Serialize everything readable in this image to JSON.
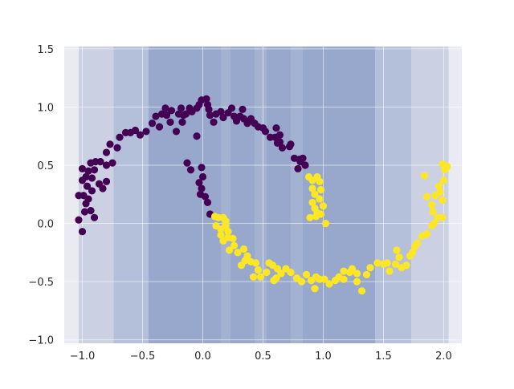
{
  "chart_data": {
    "type": "scatter",
    "title": "",
    "xlabel": "",
    "ylabel": "",
    "xlim": [
      -1.15,
      2.15
    ],
    "ylim": [
      -1.03,
      1.52
    ],
    "xticks": [
      -1.0,
      -0.5,
      0.0,
      0.5,
      1.0,
      1.5,
      2.0
    ],
    "xtick_labels": [
      "−1.0",
      "−0.5",
      "0.0",
      "0.5",
      "1.0",
      "1.5",
      "2.0"
    ],
    "yticks": [
      -1.0,
      -0.5,
      0.0,
      0.5,
      1.0,
      1.5
    ],
    "ytick_labels": [
      "−1.0",
      "−0.5",
      "0.0",
      "0.5",
      "1.0",
      "1.5"
    ],
    "grid": true,
    "legend": "none",
    "background_color": "#eaeaf2",
    "overlay_color": "#7b90bf",
    "overlay_opacity": 0.28,
    "shaded_intervals": [
      [
        -1.03,
        2.04
      ],
      [
        -0.74,
        1.73
      ],
      [
        -0.45,
        1.43
      ],
      [
        -0.45,
        0.15
      ],
      [
        0.23,
        0.43
      ],
      [
        0.53,
        0.73
      ],
      [
        0.83,
        1.43
      ]
    ],
    "series": [
      {
        "color": "#440154",
        "points": [
          [
            -1.03,
            0.03
          ],
          [
            -1.0,
            -0.07
          ],
          [
            -1.03,
            0.24
          ],
          [
            -0.99,
            0.24
          ],
          [
            -0.95,
            0.21
          ],
          [
            -0.97,
            0.17
          ],
          [
            -0.93,
            0.11
          ],
          [
            -0.98,
            0.1
          ],
          [
            -0.9,
            0.05
          ],
          [
            -0.96,
            0.32
          ],
          [
            -0.92,
            0.28
          ],
          [
            -1.0,
            0.37
          ],
          [
            -0.97,
            0.4
          ],
          [
            -0.92,
            0.39
          ],
          [
            -0.86,
            0.34
          ],
          [
            -0.83,
            0.3
          ],
          [
            -0.8,
            0.36
          ],
          [
            -1.0,
            0.47
          ],
          [
            -0.95,
            0.45
          ],
          [
            -0.9,
            0.46
          ],
          [
            -0.93,
            0.52
          ],
          [
            -0.89,
            0.53
          ],
          [
            -0.85,
            0.53
          ],
          [
            -0.8,
            0.5
          ],
          [
            -0.75,
            0.52
          ],
          [
            -0.8,
            0.61
          ],
          [
            -0.77,
            0.68
          ],
          [
            -0.71,
            0.65
          ],
          [
            -0.69,
            0.74
          ],
          [
            -0.64,
            0.78
          ],
          [
            -0.6,
            0.78
          ],
          [
            -0.56,
            0.8
          ],
          [
            -0.52,
            0.76
          ],
          [
            -0.47,
            0.79
          ],
          [
            -0.42,
            0.86
          ],
          [
            -0.36,
            0.83
          ],
          [
            -0.39,
            0.92
          ],
          [
            -0.34,
            0.94
          ],
          [
            -0.31,
            0.99
          ],
          [
            -0.26,
            0.97
          ],
          [
            -0.2,
            0.94
          ],
          [
            -0.18,
            0.99
          ],
          [
            -0.16,
            0.93
          ],
          [
            -0.17,
            0.87
          ],
          [
            -0.22,
            0.79
          ],
          [
            -0.27,
            0.87
          ],
          [
            -0.3,
            0.93
          ],
          [
            -0.14,
            0.94
          ],
          [
            -0.11,
            0.99
          ],
          [
            -0.09,
            0.96
          ],
          [
            -0.05,
            0.99
          ],
          [
            -0.03,
            1.02
          ],
          [
            -0.01,
            1.06
          ],
          [
            0.03,
            1.07
          ],
          [
            0.04,
            1.02
          ],
          [
            0.05,
            0.98
          ],
          [
            0.06,
            0.93
          ],
          [
            0.09,
            0.87
          ],
          [
            0.11,
            0.94
          ],
          [
            0.15,
            0.96
          ],
          [
            0.17,
            0.91
          ],
          [
            0.21,
            0.95
          ],
          [
            0.24,
            0.99
          ],
          [
            0.26,
            0.92
          ],
          [
            0.28,
            0.88
          ],
          [
            0.31,
            0.92
          ],
          [
            0.33,
            0.98
          ],
          [
            0.34,
            0.9
          ],
          [
            0.37,
            0.86
          ],
          [
            0.4,
            0.9
          ],
          [
            0.43,
            0.86
          ],
          [
            0.46,
            0.83
          ],
          [
            0.5,
            0.82
          ],
          [
            0.52,
            0.79
          ],
          [
            0.56,
            0.74
          ],
          [
            0.6,
            0.74
          ],
          [
            0.61,
            0.82
          ],
          [
            0.64,
            0.76
          ],
          [
            0.64,
            0.7
          ],
          [
            0.66,
            0.65
          ],
          [
            0.62,
            0.69
          ],
          [
            0.72,
            0.66
          ],
          [
            0.73,
            0.68
          ],
          [
            0.76,
            0.56
          ],
          [
            0.8,
            0.55
          ],
          [
            0.83,
            0.56
          ],
          [
            0.85,
            0.5
          ],
          [
            0.79,
            0.47
          ],
          [
            0.81,
            0.53
          ],
          [
            -0.05,
            0.75
          ],
          [
            -0.13,
            0.52
          ],
          [
            -0.1,
            0.46
          ],
          [
            -0.01,
            0.48
          ],
          [
            0.0,
            0.4
          ],
          [
            -0.03,
            0.35
          ],
          [
            -0.01,
            0.3
          ],
          [
            -0.02,
            0.25
          ],
          [
            0.02,
            0.23
          ],
          [
            0.04,
            0.18
          ],
          [
            0.06,
            0.08
          ]
        ]
      },
      {
        "color": "#fde725",
        "points": [
          [
            0.1,
            0.06
          ],
          [
            0.13,
            0.05
          ],
          [
            0.17,
            0.05
          ],
          [
            0.19,
            0.02
          ],
          [
            0.11,
            -0.02
          ],
          [
            0.15,
            -0.05
          ],
          [
            0.19,
            -0.02
          ],
          [
            0.21,
            -0.07
          ],
          [
            0.15,
            -0.1
          ],
          [
            0.21,
            -0.12
          ],
          [
            0.25,
            -0.13
          ],
          [
            0.26,
            -0.19
          ],
          [
            0.17,
            -0.15
          ],
          [
            0.22,
            -0.23
          ],
          [
            0.29,
            -0.25
          ],
          [
            0.34,
            -0.22
          ],
          [
            0.37,
            -0.28
          ],
          [
            0.35,
            -0.32
          ],
          [
            0.32,
            -0.36
          ],
          [
            0.4,
            -0.33
          ],
          [
            0.44,
            -0.34
          ],
          [
            0.46,
            -0.4
          ],
          [
            0.48,
            -0.46
          ],
          [
            0.53,
            -0.42
          ],
          [
            0.55,
            -0.34
          ],
          [
            0.58,
            -0.36
          ],
          [
            0.62,
            -0.39
          ],
          [
            0.65,
            -0.43
          ],
          [
            0.59,
            -0.49
          ],
          [
            0.61,
            -0.47
          ],
          [
            0.69,
            -0.39
          ],
          [
            0.73,
            -0.42
          ],
          [
            0.78,
            -0.47
          ],
          [
            0.82,
            -0.5
          ],
          [
            0.86,
            -0.44
          ],
          [
            0.9,
            -0.49
          ],
          [
            0.94,
            -0.46
          ],
          [
            0.97,
            -0.48
          ],
          [
            1.01,
            -0.48
          ],
          [
            0.93,
            -0.56
          ],
          [
            1.05,
            -0.52
          ],
          [
            1.1,
            -0.49
          ],
          [
            1.13,
            -0.46
          ],
          [
            1.17,
            -0.41
          ],
          [
            1.22,
            -0.42
          ],
          [
            1.24,
            -0.39
          ],
          [
            1.28,
            -0.43
          ],
          [
            1.28,
            -0.5
          ],
          [
            1.32,
            -0.58
          ],
          [
            1.36,
            -0.44
          ],
          [
            1.39,
            -0.38
          ],
          [
            1.45,
            -0.34
          ],
          [
            1.5,
            -0.35
          ],
          [
            1.53,
            -0.34
          ],
          [
            1.6,
            -0.35
          ],
          [
            1.63,
            -0.29
          ],
          [
            1.65,
            -0.38
          ],
          [
            1.69,
            -0.36
          ],
          [
            1.72,
            -0.28
          ],
          [
            1.74,
            -0.25
          ],
          [
            1.76,
            -0.2
          ],
          [
            1.78,
            -0.17
          ],
          [
            1.82,
            -0.11
          ],
          [
            1.86,
            -0.09
          ],
          [
            1.9,
            -0.02
          ],
          [
            1.92,
            0.0
          ],
          [
            1.95,
            0.05
          ],
          [
            1.99,
            0.05
          ],
          [
            1.91,
            0.1
          ],
          [
            1.9,
            0.16
          ],
          [
            1.93,
            0.24
          ],
          [
            1.97,
            0.27
          ],
          [
            1.96,
            0.32
          ],
          [
            2.0,
            0.37
          ],
          [
            2.01,
            0.46
          ],
          [
            1.99,
            0.51
          ],
          [
            2.03,
            0.49
          ],
          [
            1.84,
            0.41
          ],
          [
            1.99,
            0.2
          ],
          [
            1.86,
            0.23
          ],
          [
            1.61,
            -0.23
          ],
          [
            1.55,
            -0.41
          ],
          [
            1.17,
            -0.48
          ],
          [
            0.42,
            -0.46
          ],
          [
            0.95,
            0.4
          ],
          [
            0.91,
            0.37
          ],
          [
            0.91,
            0.3
          ],
          [
            0.98,
            0.29
          ],
          [
            0.93,
            0.25
          ],
          [
            0.97,
            0.21
          ],
          [
            1.0,
            0.15
          ],
          [
            0.93,
            0.13
          ],
          [
            0.89,
            0.05
          ],
          [
            0.94,
            0.06
          ],
          [
            0.98,
            0.08
          ],
          [
            1.02,
            0.0
          ],
          [
            0.88,
            0.4
          ],
          [
            0.91,
            0.18
          ],
          [
            0.97,
            0.36
          ],
          [
            0.95,
            0.09
          ]
        ]
      }
    ]
  }
}
